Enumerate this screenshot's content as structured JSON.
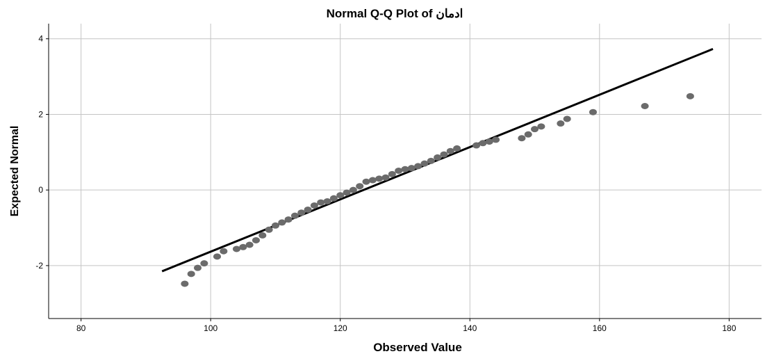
{
  "chart_data": {
    "type": "scatter",
    "title": "Normal Q-Q Plot of ادمان",
    "xlabel": "Observed Value",
    "ylabel": "Expected Normal",
    "xlim": [
      75,
      185
    ],
    "ylim": [
      -3.4,
      4.4
    ],
    "xticks": [
      80,
      100,
      120,
      140,
      160,
      180
    ],
    "yticks": [
      -2,
      0,
      2,
      4
    ],
    "grid": true,
    "point_color": "#6b6b6b",
    "line_color": "#000000",
    "reference_line": {
      "x": [
        92.5,
        177.5
      ],
      "y": [
        -2.15,
        3.73
      ]
    },
    "points": [
      {
        "x": 96,
        "y": -2.48
      },
      {
        "x": 97,
        "y": -2.22
      },
      {
        "x": 98,
        "y": -2.06
      },
      {
        "x": 99,
        "y": -1.94
      },
      {
        "x": 101,
        "y": -1.76
      },
      {
        "x": 102,
        "y": -1.62
      },
      {
        "x": 104,
        "y": -1.56
      },
      {
        "x": 105,
        "y": -1.51
      },
      {
        "x": 106,
        "y": -1.45
      },
      {
        "x": 107,
        "y": -1.33
      },
      {
        "x": 108,
        "y": -1.2
      },
      {
        "x": 109,
        "y": -1.05
      },
      {
        "x": 110,
        "y": -0.94
      },
      {
        "x": 111,
        "y": -0.86
      },
      {
        "x": 112,
        "y": -0.78
      },
      {
        "x": 113,
        "y": -0.68
      },
      {
        "x": 114,
        "y": -0.6
      },
      {
        "x": 115,
        "y": -0.52
      },
      {
        "x": 116,
        "y": -0.41
      },
      {
        "x": 117,
        "y": -0.33
      },
      {
        "x": 118,
        "y": -0.3
      },
      {
        "x": 119,
        "y": -0.22
      },
      {
        "x": 120,
        "y": -0.14
      },
      {
        "x": 121,
        "y": -0.07
      },
      {
        "x": 122,
        "y": 0.0
      },
      {
        "x": 123,
        "y": 0.1
      },
      {
        "x": 124,
        "y": 0.22
      },
      {
        "x": 125,
        "y": 0.26
      },
      {
        "x": 126,
        "y": 0.3
      },
      {
        "x": 127,
        "y": 0.33
      },
      {
        "x": 128,
        "y": 0.42
      },
      {
        "x": 129,
        "y": 0.51
      },
      {
        "x": 130,
        "y": 0.55
      },
      {
        "x": 131,
        "y": 0.58
      },
      {
        "x": 132,
        "y": 0.63
      },
      {
        "x": 133,
        "y": 0.7
      },
      {
        "x": 134,
        "y": 0.77
      },
      {
        "x": 135,
        "y": 0.86
      },
      {
        "x": 136,
        "y": 0.94
      },
      {
        "x": 137,
        "y": 1.03
      },
      {
        "x": 138,
        "y": 1.1
      },
      {
        "x": 141,
        "y": 1.18
      },
      {
        "x": 142,
        "y": 1.24
      },
      {
        "x": 143,
        "y": 1.28
      },
      {
        "x": 144,
        "y": 1.33
      },
      {
        "x": 148,
        "y": 1.37
      },
      {
        "x": 149,
        "y": 1.47
      },
      {
        "x": 150,
        "y": 1.61
      },
      {
        "x": 151,
        "y": 1.68
      },
      {
        "x": 154,
        "y": 1.76
      },
      {
        "x": 155,
        "y": 1.88
      },
      {
        "x": 159,
        "y": 2.06
      },
      {
        "x": 167,
        "y": 2.22
      },
      {
        "x": 174,
        "y": 2.48
      }
    ]
  }
}
